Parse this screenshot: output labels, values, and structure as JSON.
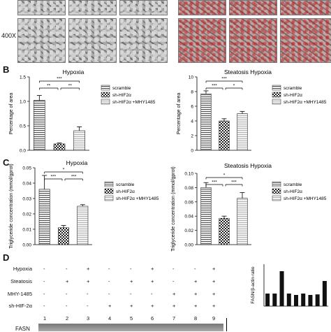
{
  "micro_label": "400X",
  "panel_b": {
    "label": "B",
    "left": {
      "title": "Hypoxia",
      "ylabel": "Percentage of area",
      "ticks": [
        "0.0",
        "0.5",
        "1.0",
        "1.5"
      ],
      "sig": [
        "***",
        "**",
        "**"
      ]
    },
    "right": {
      "title": "Steatosis Hypoxia",
      "ylabel": "Percentage of area",
      "ticks": [
        "0",
        "2",
        "4",
        "6",
        "8",
        "10"
      ],
      "sig": [
        "***",
        "***",
        "*"
      ]
    }
  },
  "panel_c": {
    "label": "C",
    "left": {
      "title": "Hypoxia",
      "ylabel": "Triglyceride concentration (mmol/gprot)",
      "ticks": [
        "0.00",
        "0.01",
        "0.02",
        "0.03",
        "0.04",
        "0.05"
      ],
      "sig": [
        "*",
        "***",
        "***"
      ]
    },
    "right": {
      "title": "Steatosis Hypoxia",
      "ylabel": "Triglyceride concentration (mmol/gprot)",
      "ticks": [
        "0.00",
        "0.02",
        "0.04",
        "0.06",
        "0.08",
        "0.10"
      ],
      "sig": [
        "*",
        "***",
        "***"
      ]
    }
  },
  "legend": [
    "scramble",
    "sh-HIF2α",
    "sh-HIF2α +MHY1485"
  ],
  "panel_d": {
    "label": "D",
    "rows": [
      {
        "name": "Hypoxia",
        "signs": [
          "-",
          "-",
          "+",
          "-",
          "-",
          "+",
          "-",
          "-",
          "+"
        ]
      },
      {
        "name": "Steatosis",
        "signs": [
          "-",
          "+",
          "+",
          "-",
          "+",
          "+",
          "-",
          "+",
          "+"
        ]
      },
      {
        "name": "MHY-1485",
        "signs": [
          "-",
          "-",
          "-",
          "-",
          "-",
          "-",
          "+",
          "+",
          "+"
        ]
      },
      {
        "name": "sh-HIF-2α",
        "signs": [
          "-",
          "-",
          "-",
          "+",
          "+",
          "+",
          "+",
          "+",
          "+"
        ]
      }
    ],
    "lanes": [
      "1",
      "2",
      "3",
      "4",
      "5",
      "6",
      "7",
      "8",
      "9"
    ],
    "blot_label": "FASN",
    "ratio_ylabel": "FASN/β-actin ratio",
    "ratio_values": [
      0.45,
      0.45,
      1.25,
      0.45,
      0.4,
      0.45,
      0.4,
      0.42,
      0.9
    ]
  },
  "chart_data": [
    {
      "type": "bar",
      "title": "Hypoxia",
      "ylabel": "Percentage of area",
      "categories": [
        "scramble",
        "sh-HIF2α",
        "sh-HIF2α +MHY1485"
      ],
      "values": [
        1.02,
        0.13,
        0.4
      ],
      "errors": [
        0.1,
        0.02,
        0.08
      ],
      "ylim": [
        0,
        1.5
      ]
    },
    {
      "type": "bar",
      "title": "Steatosis Hypoxia",
      "ylabel": "Percentage of area",
      "categories": [
        "scramble",
        "sh-HIF2α",
        "sh-HIF2α +MHY1485"
      ],
      "values": [
        7.7,
        4.0,
        5.0
      ],
      "errors": [
        0.4,
        0.3,
        0.3
      ],
      "ylim": [
        0,
        10
      ]
    },
    {
      "type": "bar",
      "title": "Hypoxia",
      "ylabel": "Triglyceride concentration (mmol/gprot)",
      "categories": [
        "scramble",
        "sh-HIF2α",
        "sh-HIF2α +MHY1485"
      ],
      "values": [
        0.036,
        0.011,
        0.025
      ],
      "errors": [
        0.009,
        0.0015,
        0.001
      ],
      "ylim": [
        0,
        0.05
      ]
    },
    {
      "type": "bar",
      "title": "Steatosis Hypoxia",
      "ylabel": "Triglyceride concentration (mmol/gprot)",
      "categories": [
        "scramble",
        "sh-HIF2α",
        "sh-HIF2α +MHY1485"
      ],
      "values": [
        0.08,
        0.037,
        0.065
      ],
      "errors": [
        0.007,
        0.003,
        0.008
      ],
      "ylim": [
        0,
        0.1
      ]
    }
  ]
}
